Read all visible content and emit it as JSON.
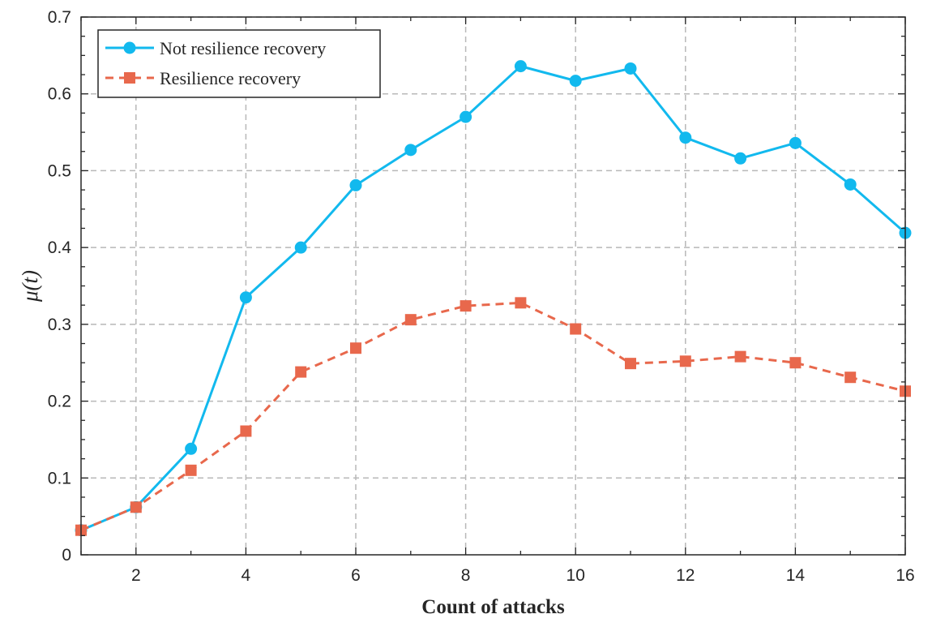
{
  "chart_data": {
    "type": "line",
    "title": "",
    "xlabel": "Count of attacks",
    "ylabel": "μ(t)",
    "xlim": [
      1,
      16
    ],
    "ylim": [
      0,
      0.7
    ],
    "x_ticks": [
      2,
      4,
      6,
      8,
      10,
      12,
      14,
      16
    ],
    "y_ticks": [
      0,
      0.1,
      0.2,
      0.3,
      0.4,
      0.5,
      0.6,
      0.7
    ],
    "x_tick_labels": [
      "2",
      "4",
      "6",
      "8",
      "10",
      "12",
      "14",
      "16"
    ],
    "y_tick_labels": [
      "0",
      "0.1",
      "0.2",
      "0.3",
      "0.4",
      "0.5",
      "0.6",
      "0.7"
    ],
    "grid": true,
    "legend_position": "top-left",
    "x": [
      1,
      2,
      3,
      4,
      5,
      6,
      7,
      8,
      9,
      10,
      11,
      12,
      13,
      14,
      15,
      16
    ],
    "series": [
      {
        "name": "Not resilience recovery",
        "color": "#12b9ee",
        "line_style": "solid",
        "marker": "circle",
        "values": [
          0.032,
          0.062,
          0.138,
          0.335,
          0.4,
          0.481,
          0.527,
          0.57,
          0.636,
          0.617,
          0.633,
          0.543,
          0.516,
          0.536,
          0.482,
          0.419
        ]
      },
      {
        "name": "Resilience recovery",
        "color": "#e8684c",
        "line_style": "dashed",
        "marker": "square",
        "values": [
          0.032,
          0.062,
          0.11,
          0.161,
          0.238,
          0.269,
          0.306,
          0.324,
          0.328,
          0.294,
          0.249,
          0.252,
          0.258,
          0.25,
          0.231,
          0.213
        ]
      }
    ]
  }
}
